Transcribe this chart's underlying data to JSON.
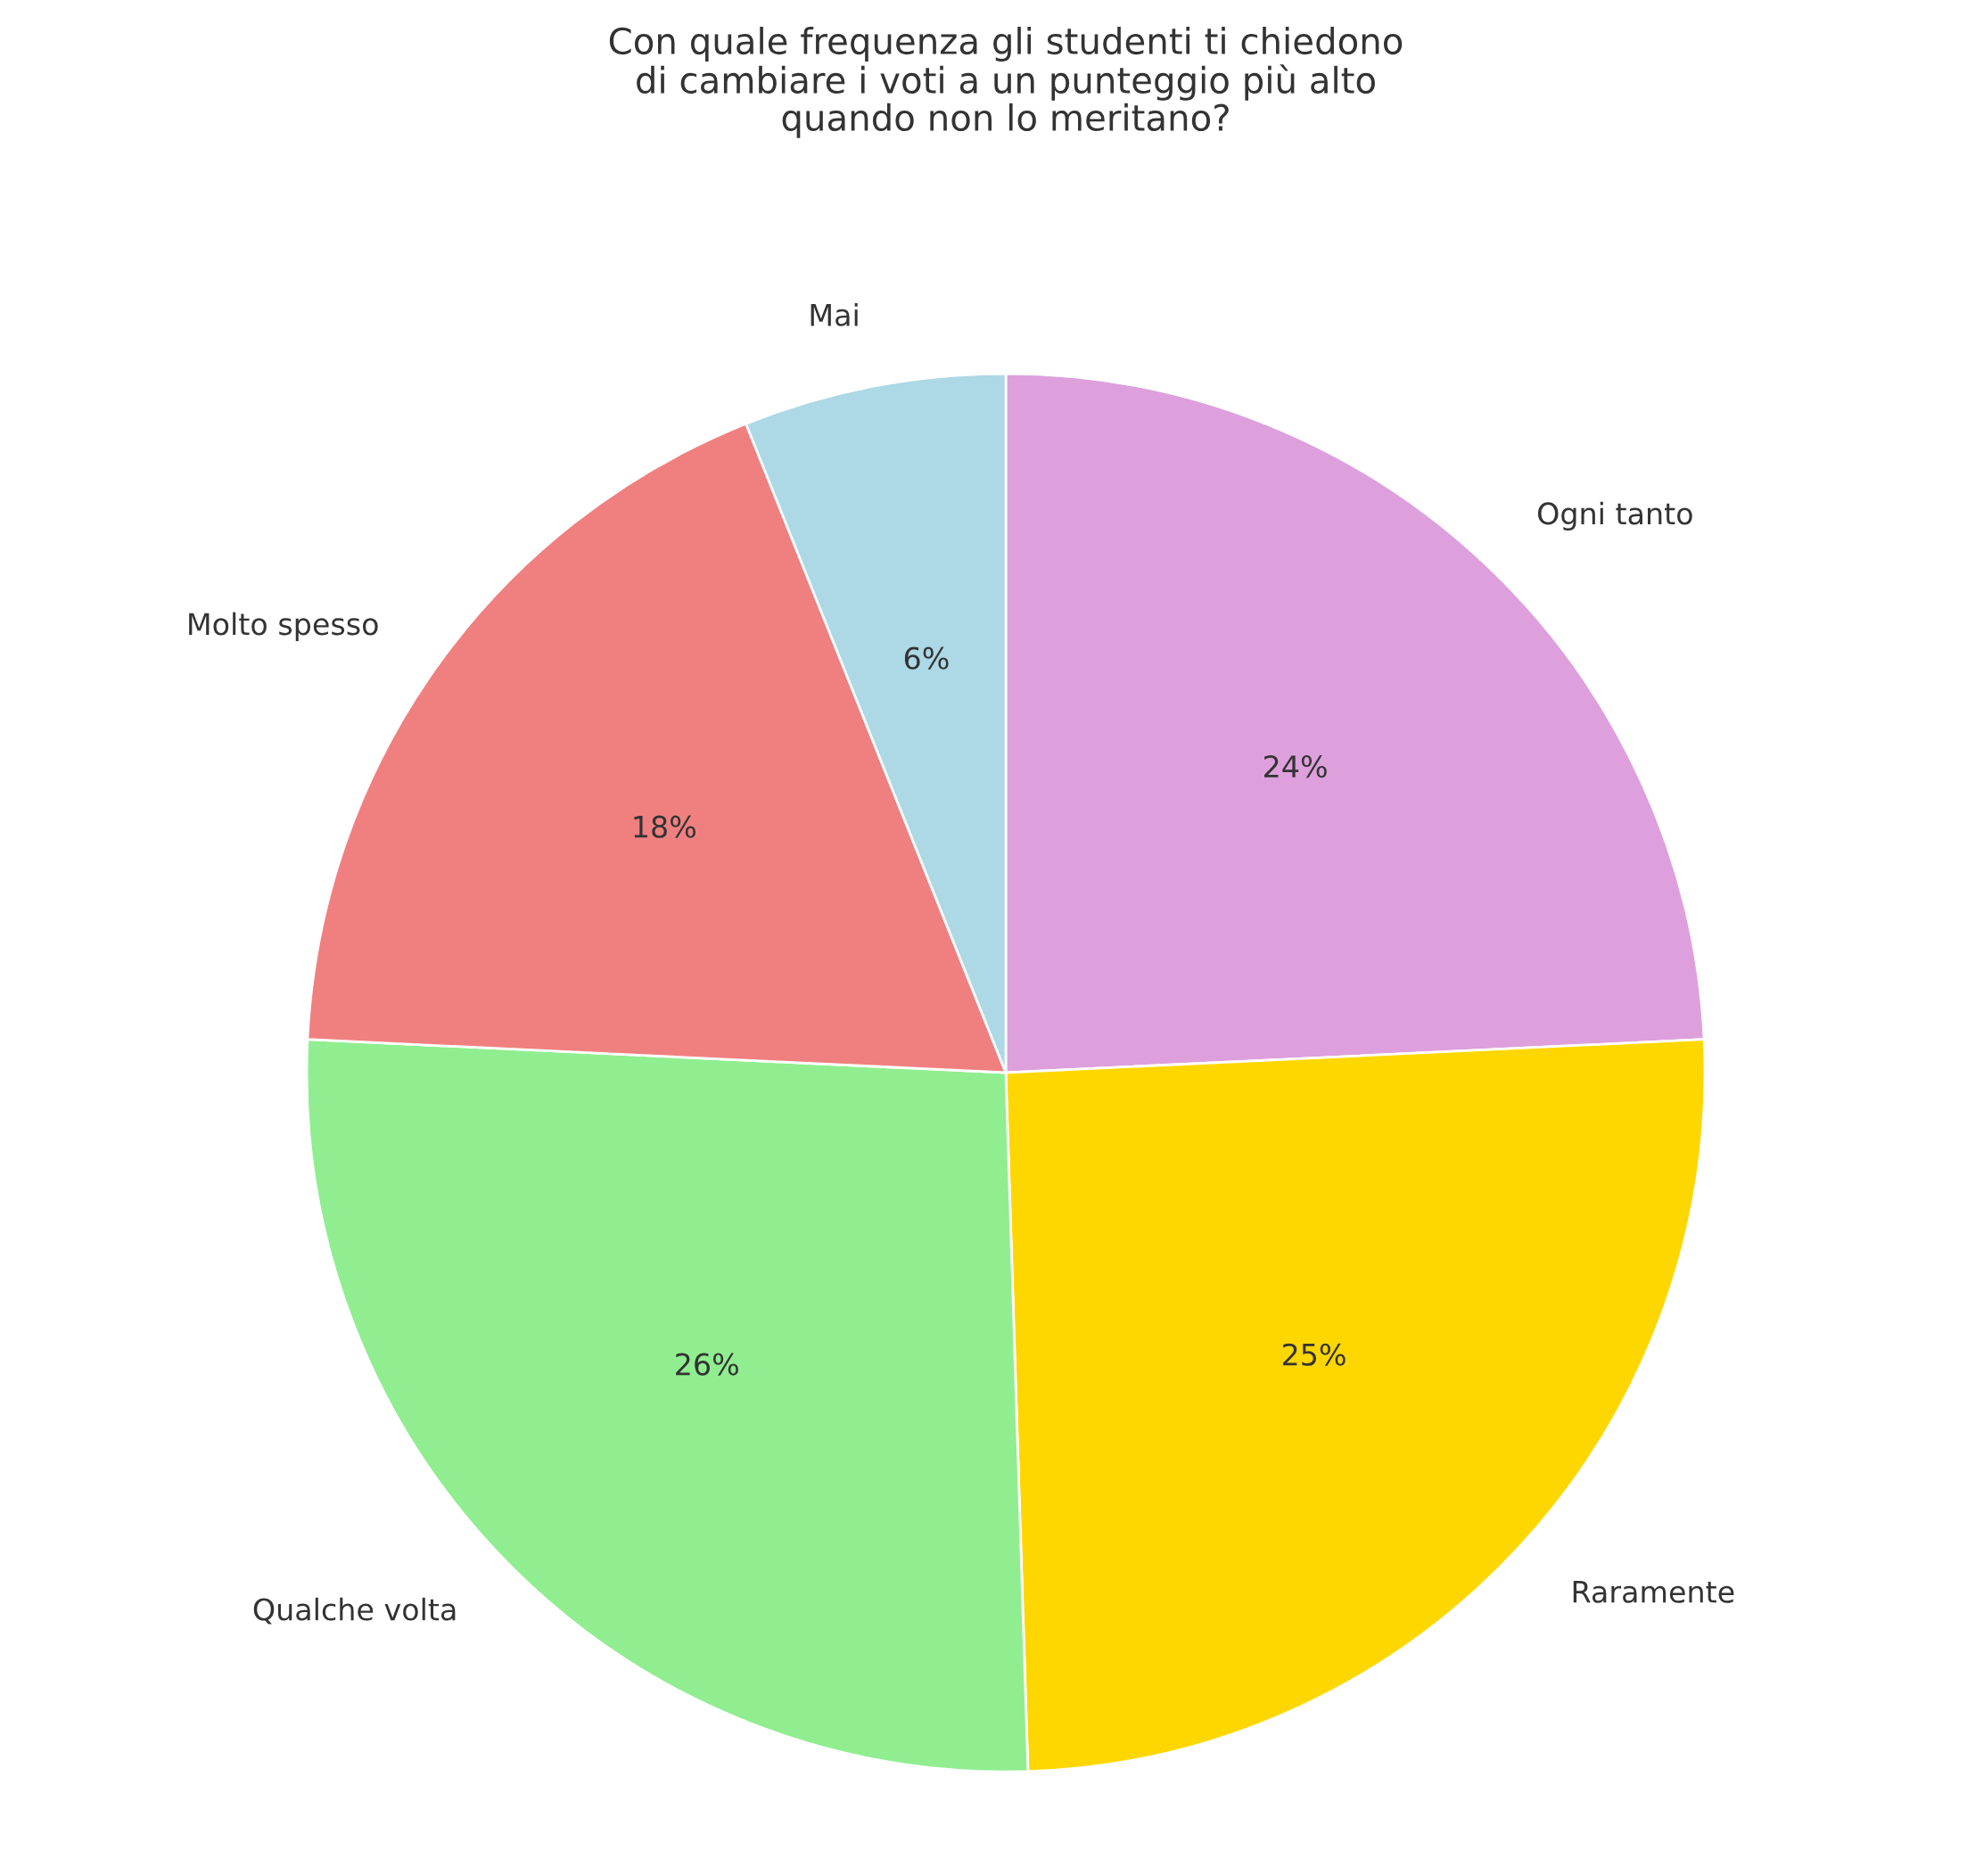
{
  "chart_data": {
    "type": "pie",
    "title": "Con quale frequenza gli studenti ti chiedono\ndi cambiare i voti a un punteggio più alto\nquando non lo meritano?",
    "categories": [
      "Ogni tanto",
      "Raramente",
      "Qualche volta",
      "Molto spesso",
      "Mai"
    ],
    "values": [
      24,
      25,
      26,
      18,
      6
    ],
    "colors": [
      "#dda0dd",
      "#ffd700",
      "#90ee90",
      "#f08080",
      "#add8e6"
    ],
    "value_labels": [
      "24%",
      "25%",
      "26%",
      "18%",
      "6%"
    ]
  }
}
